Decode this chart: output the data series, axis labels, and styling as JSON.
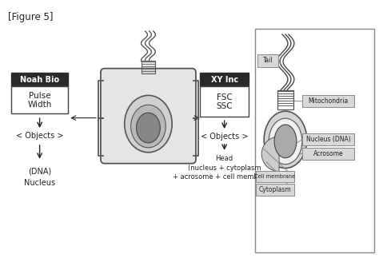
{
  "title": "[Figure 5]",
  "text_color": "#222222",
  "dark_box_color": "#2a2a2a",
  "light_box_color": "#d8d8d8",
  "label_noah_bio": "Noah Bio",
  "label_xy_inc": "XY Inc",
  "label_pulse_width": "Pulse\nWidth",
  "label_fsc_ssc": "FSC\nSSC",
  "label_objects_left": "< Objects >",
  "label_objects_right": "< Objects >",
  "label_dna_nucleus": "(DNA)\nNucleus",
  "label_head": "Head\n(nucleus + cytoplasm\n+ acrosome + cell membrane)",
  "label_tail": "Tail",
  "label_mitochondria": "Mitochondria",
  "label_nucleus_dna": "Nucleus (DNA)",
  "label_acrosome": "Acrosome",
  "label_cell_membrane": "Cell membrane",
  "label_cytoplasm": "Cytoplasm"
}
